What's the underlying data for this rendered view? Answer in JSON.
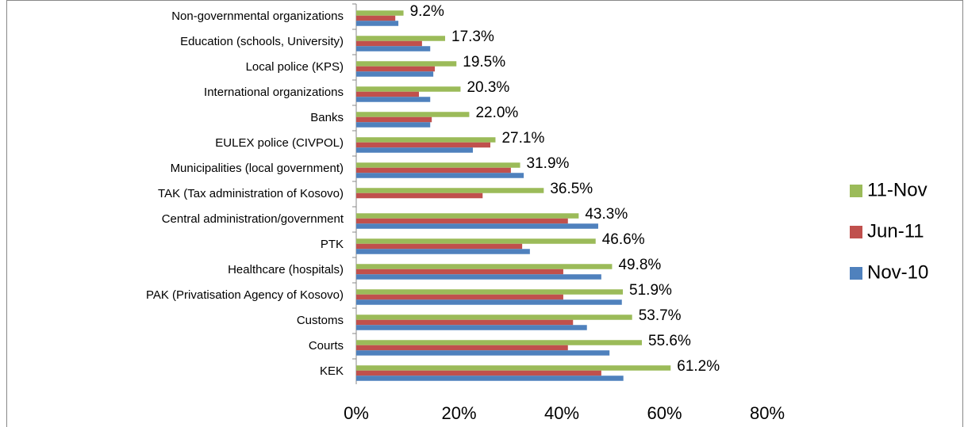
{
  "chart_data": {
    "type": "bar",
    "orientation": "horizontal",
    "categories": [
      "Non-governmental organizations",
      "Education (schools, University)",
      "Local police (KPS)",
      "International organizations",
      "Banks",
      "EULEX police (CIVPOL)",
      "Municipalities (local government)",
      "TAK (Tax administration of Kosovo)",
      "Central administration/government",
      "PTK",
      "Healthcare (hospitals)",
      "PAK (Privatisation Agency of Kosovo)",
      "Customs",
      "Courts",
      "KEK"
    ],
    "series": [
      {
        "name": "11-Nov",
        "color": "#9bbb59",
        "values": [
          9.2,
          17.3,
          19.5,
          20.3,
          22.0,
          27.1,
          31.9,
          36.5,
          43.3,
          46.6,
          49.8,
          51.9,
          53.7,
          55.6,
          61.2
        ],
        "value_labels": [
          "9.2%",
          "17.3%",
          "19.5%",
          "20.3%",
          "22.0%",
          "27.1%",
          "31.9%",
          "36.5%",
          "43.3%",
          "46.6%",
          "49.8%",
          "51.9%",
          "53.7%",
          "55.6%",
          "61.2%"
        ]
      },
      {
        "name": "Jun-11",
        "color": "#c0504d",
        "values": [
          7.6,
          12.8,
          15.3,
          12.2,
          14.7,
          26.1,
          30.1,
          24.6,
          41.2,
          32.3,
          40.3,
          40.3,
          42.2,
          41.2,
          47.7
        ]
      },
      {
        "name": "Nov-10",
        "color": "#4f81bd",
        "values": [
          8.2,
          14.4,
          15.0,
          14.4,
          14.4,
          22.7,
          32.6,
          null,
          47.1,
          33.8,
          47.7,
          51.7,
          44.9,
          49.3,
          52.0
        ]
      }
    ],
    "xlim": [
      0,
      80
    ],
    "xticks": [
      {
        "value": 0,
        "label": "0%"
      },
      {
        "value": 20,
        "label": "20%"
      },
      {
        "value": 40,
        "label": "40%"
      },
      {
        "value": 60,
        "label": "60%"
      },
      {
        "value": 80,
        "label": "80%"
      }
    ],
    "legend": "right"
  }
}
